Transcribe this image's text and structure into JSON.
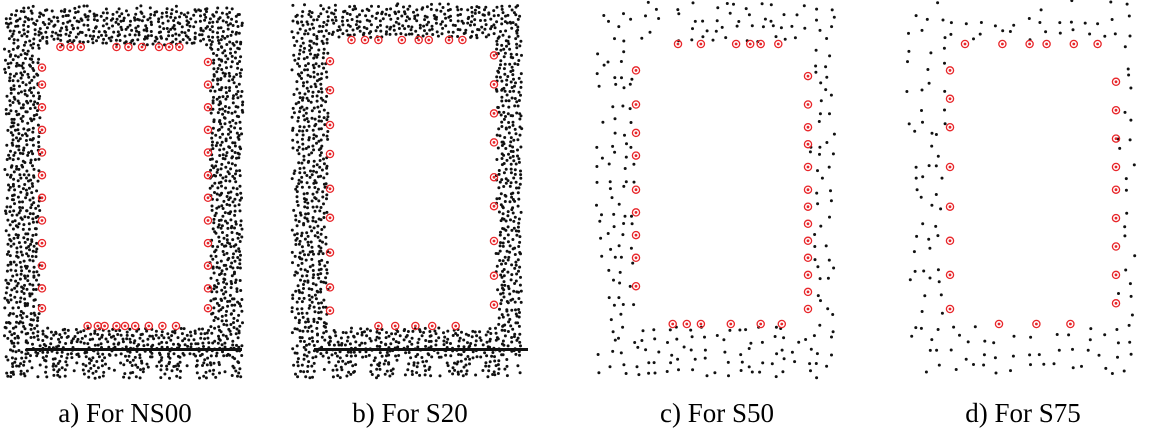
{
  "figure": {
    "panels": [
      {
        "id": "a",
        "caption": "a) For NS00",
        "density": "dense",
        "ground_bars": true
      },
      {
        "id": "b",
        "caption": "b) For S20",
        "density": "dense",
        "ground_bars": true
      },
      {
        "id": "c",
        "caption": "c) For S50",
        "density": "sparse",
        "ground_bars": false
      },
      {
        "id": "d",
        "caption": "d) For S75",
        "density": "sparser",
        "ground_bars": false
      }
    ],
    "colors": {
      "point": "#111111",
      "edge_marker": "#e8262a",
      "background": "#ffffff"
    },
    "legend": []
  }
}
